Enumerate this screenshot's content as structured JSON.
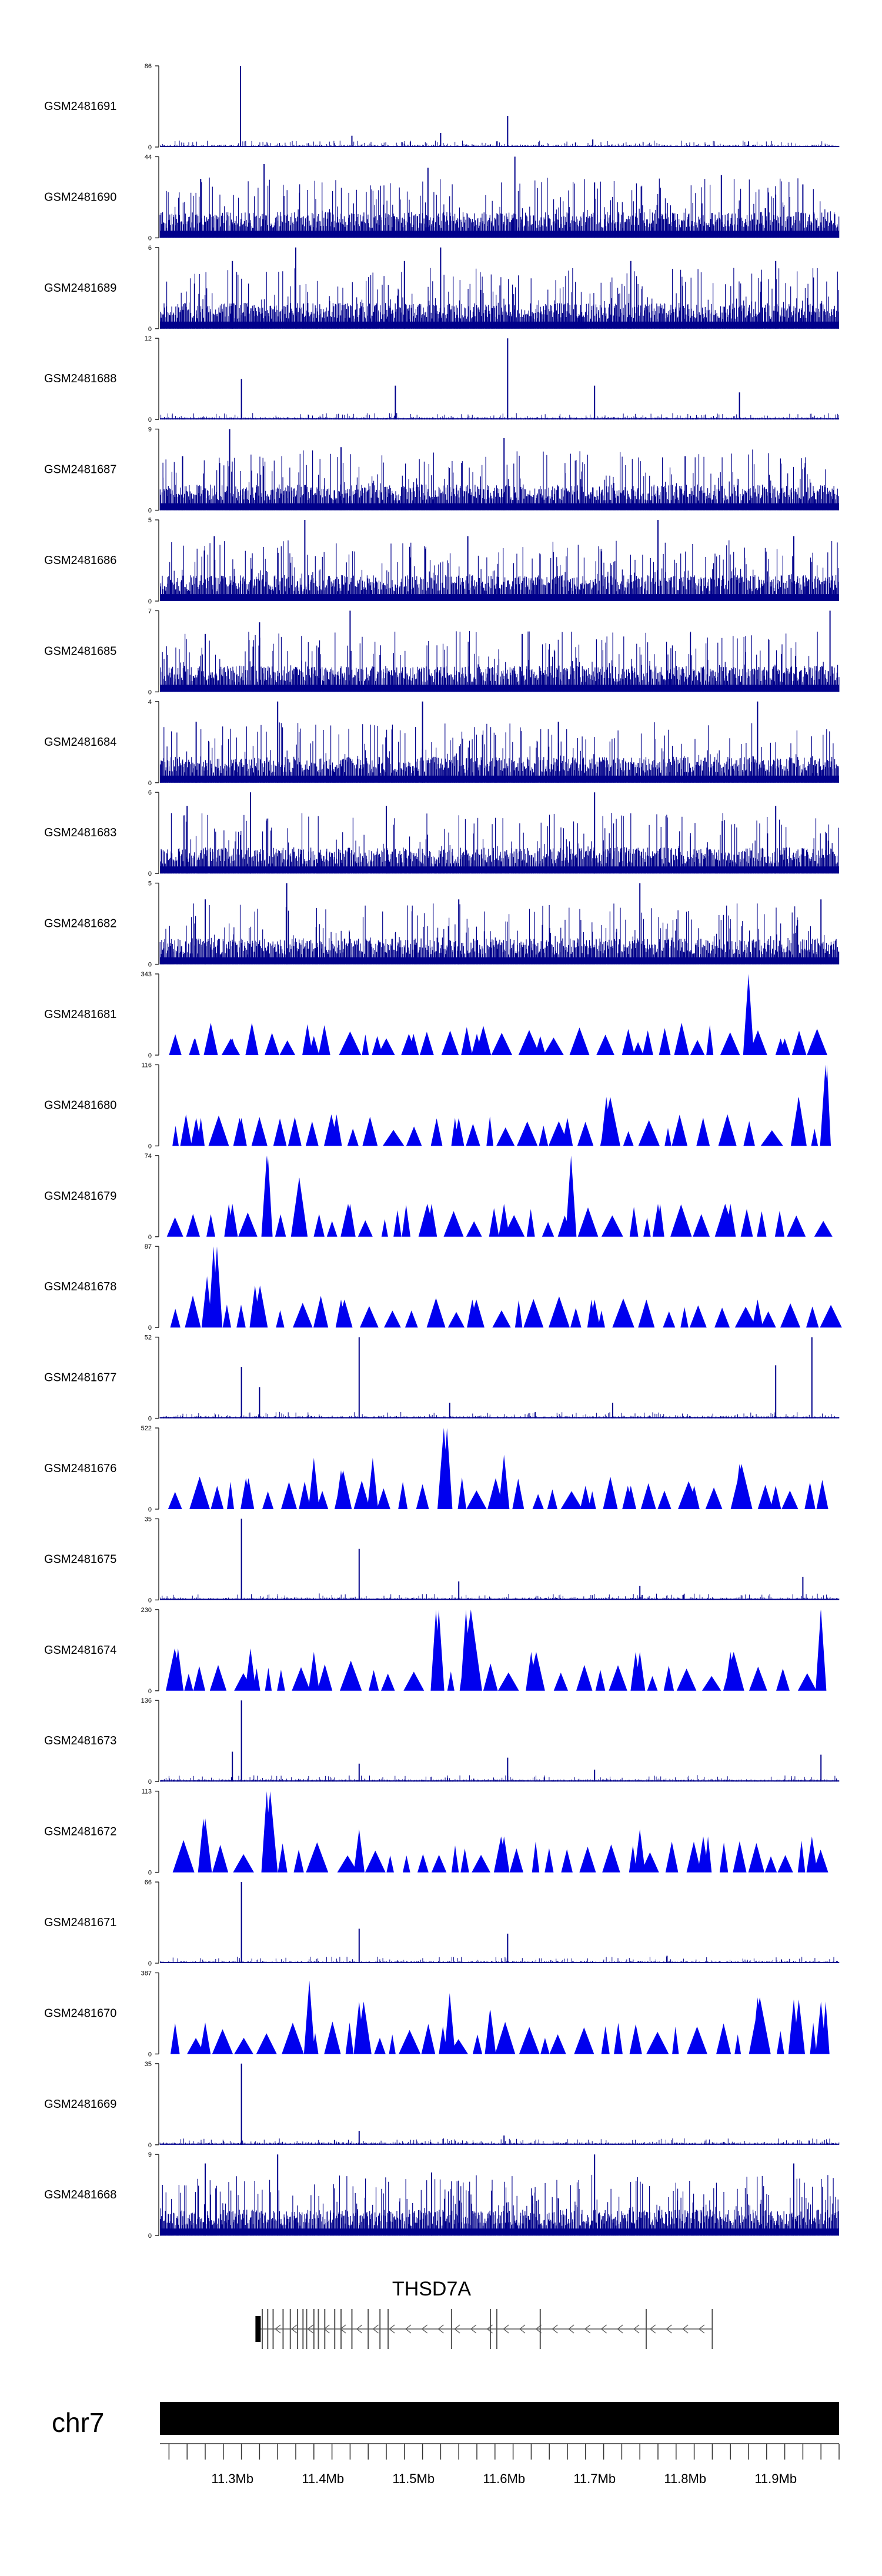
{
  "chart_data": {
    "type": "area",
    "title": "",
    "xlabel": "",
    "ylabel": "",
    "xlim": [
      11.22,
      11.97
    ],
    "x_unit": "Mb",
    "colors": {
      "signal_dense": "#00008B",
      "signal_peaks": "#0000EE",
      "axis": "#333333",
      "text": "#000000",
      "gene": "#555555",
      "chromosome": "#000000"
    },
    "tracks": [
      {
        "name": "GSM2481691",
        "ymax": "86",
        "ymin": "0",
        "style": "sparse",
        "peaks": [
          [
            11.309,
            86
          ],
          [
            11.432,
            12
          ],
          [
            11.53,
            15
          ],
          [
            11.604,
            33
          ],
          [
            11.698,
            8
          ],
          [
            11.87,
            6
          ]
        ]
      },
      {
        "name": "GSM2481690",
        "ymax": "44",
        "ymin": "0",
        "style": "dense",
        "peaks": [
          [
            11.265,
            32
          ],
          [
            11.335,
            40
          ],
          [
            11.516,
            38
          ],
          [
            11.612,
            44
          ],
          [
            11.7,
            30
          ],
          [
            11.84,
            34
          ],
          [
            11.93,
            29
          ]
        ]
      },
      {
        "name": "GSM2481689",
        "ymax": "6",
        "ymin": "0",
        "style": "dense",
        "peaks": [
          [
            11.3,
            5
          ],
          [
            11.37,
            6
          ],
          [
            11.49,
            5
          ],
          [
            11.53,
            6
          ],
          [
            11.74,
            5
          ],
          [
            11.9,
            5
          ]
        ]
      },
      {
        "name": "GSM2481688",
        "ymax": "12",
        "ymin": "0",
        "style": "sparse",
        "peaks": [
          [
            11.31,
            6
          ],
          [
            11.48,
            5
          ],
          [
            11.604,
            12
          ],
          [
            11.7,
            5
          ],
          [
            11.86,
            4
          ]
        ]
      },
      {
        "name": "GSM2481687",
        "ymax": "9",
        "ymin": "0",
        "style": "dense",
        "peaks": [
          [
            11.245,
            6
          ],
          [
            11.297,
            9
          ],
          [
            11.42,
            7
          ],
          [
            11.6,
            8
          ],
          [
            11.8,
            6
          ]
        ]
      },
      {
        "name": "GSM2481686",
        "ymax": "5",
        "ymin": "0",
        "style": "dense",
        "peaks": [
          [
            11.28,
            4
          ],
          [
            11.38,
            5
          ],
          [
            11.56,
            4
          ],
          [
            11.77,
            5
          ],
          [
            11.92,
            4
          ]
        ]
      },
      {
        "name": "GSM2481685",
        "ymax": "7",
        "ymin": "0",
        "style": "dense",
        "peaks": [
          [
            11.27,
            5
          ],
          [
            11.33,
            6
          ],
          [
            11.43,
            7
          ],
          [
            11.62,
            5
          ],
          [
            11.96,
            7
          ]
        ]
      },
      {
        "name": "GSM2481684",
        "ymax": "4",
        "ymin": "0",
        "style": "dense",
        "peaks": [
          [
            11.26,
            3
          ],
          [
            11.35,
            4
          ],
          [
            11.51,
            4
          ],
          [
            11.66,
            3
          ],
          [
            11.88,
            4
          ]
        ]
      },
      {
        "name": "GSM2481683",
        "ymax": "6",
        "ymin": "0",
        "style": "dense",
        "peaks": [
          [
            11.25,
            5
          ],
          [
            11.32,
            6
          ],
          [
            11.47,
            5
          ],
          [
            11.7,
            6
          ],
          [
            11.9,
            5
          ]
        ]
      },
      {
        "name": "GSM2481682",
        "ymax": "5",
        "ymin": "0",
        "style": "dense",
        "peaks": [
          [
            11.27,
            4
          ],
          [
            11.36,
            5
          ],
          [
            11.55,
            4
          ],
          [
            11.75,
            5
          ],
          [
            11.95,
            4
          ]
        ]
      },
      {
        "name": "GSM2481681",
        "ymax": "343",
        "ymin": "0",
        "style": "triangles",
        "peaks": [
          [
            11.258,
            70
          ],
          [
            11.3,
            70
          ],
          [
            11.39,
            80
          ],
          [
            11.46,
            80
          ],
          [
            11.5,
            90
          ],
          [
            11.57,
            90
          ],
          [
            11.64,
            80
          ],
          [
            11.748,
            55
          ],
          [
            11.87,
            343
          ],
          [
            11.91,
            70
          ]
        ]
      },
      {
        "name": "GSM2481680",
        "ymax": "116",
        "ymin": "0",
        "style": "triangles",
        "peaks": [
          [
            11.26,
            40
          ],
          [
            11.31,
            40
          ],
          [
            11.415,
            45
          ],
          [
            11.55,
            40
          ],
          [
            11.67,
            40
          ],
          [
            11.713,
            70
          ],
          [
            11.82,
            40
          ],
          [
            11.925,
            70
          ],
          [
            11.955,
            116
          ]
        ]
      },
      {
        "name": "GSM2481679",
        "ymax": "74",
        "ymin": "0",
        "style": "triangles",
        "peaks": [
          [
            11.3,
            30
          ],
          [
            11.338,
            74
          ],
          [
            11.374,
            54
          ],
          [
            11.43,
            30
          ],
          [
            11.52,
            30
          ],
          [
            11.6,
            30
          ],
          [
            11.674,
            74
          ],
          [
            11.77,
            30
          ],
          [
            11.85,
            30
          ]
        ]
      },
      {
        "name": "GSM2481678",
        "ymax": "87",
        "ymin": "0",
        "style": "triangles",
        "peaks": [
          [
            11.272,
            55
          ],
          [
            11.283,
            87
          ],
          [
            11.325,
            45
          ],
          [
            11.42,
            30
          ],
          [
            11.565,
            30
          ],
          [
            11.7,
            30
          ],
          [
            11.88,
            30
          ]
        ]
      },
      {
        "name": "GSM2481677",
        "ymax": "52",
        "ymin": "0",
        "style": "sparse",
        "peaks": [
          [
            11.31,
            33
          ],
          [
            11.33,
            20
          ],
          [
            11.44,
            52
          ],
          [
            11.54,
            10
          ],
          [
            11.72,
            10
          ],
          [
            11.9,
            34
          ],
          [
            11.94,
            52
          ]
        ]
      },
      {
        "name": "GSM2481676",
        "ymax": "522",
        "ymin": "0",
        "style": "triangles",
        "peaks": [
          [
            11.315,
            200
          ],
          [
            11.39,
            330
          ],
          [
            11.42,
            250
          ],
          [
            11.455,
            330
          ],
          [
            11.537,
            522
          ],
          [
            11.6,
            350
          ],
          [
            11.69,
            150
          ],
          [
            11.74,
            150
          ],
          [
            11.81,
            150
          ],
          [
            11.86,
            290
          ],
          [
            11.9,
            150
          ]
        ]
      },
      {
        "name": "GSM2481675",
        "ymax": "35",
        "ymin": "0",
        "style": "sparse",
        "peaks": [
          [
            11.31,
            35
          ],
          [
            11.44,
            22
          ],
          [
            11.55,
            8
          ],
          [
            11.75,
            6
          ],
          [
            11.93,
            10
          ]
        ]
      },
      {
        "name": "GSM2481674",
        "ymax": "230",
        "ymin": "0",
        "style": "triangles",
        "peaks": [
          [
            11.24,
            120
          ],
          [
            11.32,
            120
          ],
          [
            11.39,
            110
          ],
          [
            11.528,
            230
          ],
          [
            11.558,
            230
          ],
          [
            11.63,
            110
          ],
          [
            11.75,
            110
          ],
          [
            11.85,
            110
          ],
          [
            11.95,
            230
          ]
        ]
      },
      {
        "name": "GSM2481673",
        "ymax": "136",
        "ymin": "0",
        "style": "sparse",
        "peaks": [
          [
            11.31,
            136
          ],
          [
            11.3,
            50
          ],
          [
            11.44,
            30
          ],
          [
            11.604,
            40
          ],
          [
            11.7,
            20
          ],
          [
            11.95,
            45
          ]
        ]
      },
      {
        "name": "GSM2481672",
        "ymax": "113",
        "ymin": "0",
        "style": "triangles",
        "peaks": [
          [
            11.268,
            75
          ],
          [
            11.338,
            113
          ],
          [
            11.44,
            60
          ],
          [
            11.6,
            50
          ],
          [
            11.75,
            60
          ],
          [
            11.82,
            50
          ],
          [
            11.94,
            50
          ]
        ]
      },
      {
        "name": "GSM2481671",
        "ymax": "66",
        "ymin": "0",
        "style": "sparse",
        "peaks": [
          [
            11.31,
            66
          ],
          [
            11.44,
            28
          ],
          [
            11.604,
            24
          ],
          [
            11.78,
            6
          ]
        ]
      },
      {
        "name": "GSM2481670",
        "ymax": "387",
        "ymin": "0",
        "style": "triangles",
        "peaks": [
          [
            11.27,
            150
          ],
          [
            11.385,
            350
          ],
          [
            11.44,
            250
          ],
          [
            11.54,
            290
          ],
          [
            11.585,
            210
          ],
          [
            11.88,
            270
          ],
          [
            11.92,
            260
          ],
          [
            11.95,
            250
          ]
        ]
      },
      {
        "name": "GSM2481669",
        "ymax": "35",
        "ymin": "0",
        "style": "sparse",
        "peaks": [
          [
            11.31,
            35
          ],
          [
            11.44,
            6
          ],
          [
            11.6,
            4
          ]
        ]
      },
      {
        "name": "GSM2481668",
        "ymax": "9",
        "ymin": "0",
        "style": "dense",
        "peaks": [
          [
            11.27,
            8
          ],
          [
            11.35,
            9
          ],
          [
            11.52,
            7
          ],
          [
            11.7,
            9
          ],
          [
            11.92,
            8
          ]
        ]
      }
    ],
    "gene": {
      "name": "THSD7A",
      "strand": "-",
      "start": 11.33,
      "end": 11.83,
      "exons": [
        11.333,
        11.339,
        11.345,
        11.356,
        11.364,
        11.372,
        11.378,
        11.382,
        11.39,
        11.395,
        11.402,
        11.413,
        11.42,
        11.432,
        11.45,
        11.463,
        11.472,
        11.542,
        11.585,
        11.592,
        11.64,
        11.757,
        11.83
      ]
    },
    "chromosome": {
      "name": "chr7",
      "ticks": [
        {
          "pos": 11.3,
          "label": "11.3Mb"
        },
        {
          "pos": 11.4,
          "label": "11.4Mb"
        },
        {
          "pos": 11.5,
          "label": "11.5Mb"
        },
        {
          "pos": 11.6,
          "label": "11.6Mb"
        },
        {
          "pos": 11.7,
          "label": "11.7Mb"
        },
        {
          "pos": 11.8,
          "label": "11.8Mb"
        },
        {
          "pos": 11.9,
          "label": "11.9Mb"
        }
      ]
    }
  }
}
